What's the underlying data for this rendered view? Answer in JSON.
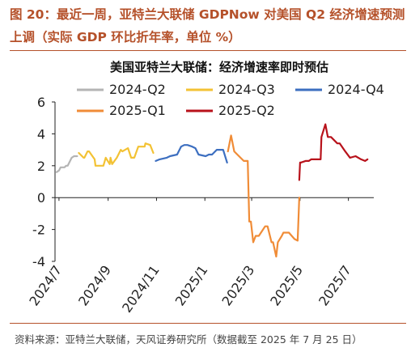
{
  "figure": {
    "title": "图 20：最近一周，亚特兰大联储 GDPNow 对美国 Q2 经济增速预测上调（实际 GDP 环比折年率，单位 %）",
    "source": "资料来源：亚特兰大联储，天风证券研究所（数据截至 2025 年 7 月 25 日）"
  },
  "chart_data": {
    "type": "line",
    "title": "美国亚特兰大联储：经济增速率即时预估",
    "xlabel": "",
    "ylabel": "",
    "ylim": [
      -4,
      6
    ],
    "yticks": [
      "6",
      "4",
      "2",
      "0",
      "-2",
      "-4"
    ],
    "xticks": [
      {
        "label": "2024/7",
        "x": "2024-07-01"
      },
      {
        "label": "2024/9",
        "x": "2024-09-01"
      },
      {
        "label": "2024/11",
        "x": "2024-11-01"
      },
      {
        "label": "2025/1",
        "x": "2025-01-01"
      },
      {
        "label": "2025/3",
        "x": "2025-03-01"
      },
      {
        "label": "2025/5",
        "x": "2025-05-01"
      },
      {
        "label": "2025/7",
        "x": "2025-07-01"
      }
    ],
    "legend_position": "top",
    "grid": false,
    "series": [
      {
        "name": "2024-Q2",
        "color": "#b4b4b4",
        "x": [
          "2024-06-28",
          "2024-07-01",
          "2024-07-03",
          "2024-07-08",
          "2024-07-10",
          "2024-07-12",
          "2024-07-17",
          "2024-07-20",
          "2024-07-24"
        ],
        "y": [
          1.6,
          1.7,
          1.9,
          1.9,
          2.0,
          2.0,
          2.5,
          2.6,
          2.6
        ]
      },
      {
        "name": "2024-Q3",
        "color": "#f3c234",
        "x": [
          "2024-07-26",
          "2024-08-01",
          "2024-08-02",
          "2024-08-06",
          "2024-08-08",
          "2024-08-15",
          "2024-08-16",
          "2024-08-22",
          "2024-08-26",
          "2024-08-29",
          "2024-09-03",
          "2024-09-04",
          "2024-09-06",
          "2024-09-12",
          "2024-09-17",
          "2024-09-19",
          "2024-09-26",
          "2024-09-30",
          "2024-10-01",
          "2024-10-04",
          "2024-10-09",
          "2024-10-17",
          "2024-10-18",
          "2024-10-24",
          "2024-10-28"
        ],
        "y": [
          2.8,
          2.5,
          2.5,
          2.9,
          2.9,
          2.4,
          2.0,
          2.0,
          2.0,
          2.5,
          2.1,
          2.5,
          2.1,
          2.5,
          3.0,
          2.9,
          3.1,
          2.5,
          2.5,
          2.5,
          3.2,
          3.2,
          3.4,
          3.3,
          2.8
        ]
      },
      {
        "name": "2024-Q4",
        "color": "#3d6fc0",
        "x": [
          "2024-10-31",
          "2024-11-05",
          "2024-11-14",
          "2024-11-18",
          "2024-11-27",
          "2024-12-02",
          "2024-12-06",
          "2024-12-10",
          "2024-12-16",
          "2024-12-20",
          "2024-12-24",
          "2025-01-02",
          "2025-01-06",
          "2025-01-10",
          "2025-01-16",
          "2025-01-17",
          "2025-01-24",
          "2025-01-29"
        ],
        "y": [
          2.3,
          2.4,
          2.5,
          2.6,
          2.7,
          3.2,
          3.3,
          3.3,
          3.2,
          3.1,
          2.7,
          2.6,
          2.7,
          2.7,
          3.0,
          3.0,
          3.0,
          2.2
        ]
      },
      {
        "name": "2025-Q1",
        "color": "#f08c37",
        "x": [
          "2025-01-30",
          "2025-02-03",
          "2025-02-07",
          "2025-02-19",
          "2025-02-21",
          "2025-02-24",
          "2025-02-26",
          "2025-02-28",
          "2025-03-03",
          "2025-03-06",
          "2025-03-10",
          "2025-03-14",
          "2025-03-18",
          "2025-03-21",
          "2025-03-26",
          "2025-03-28",
          "2025-04-01",
          "2025-04-03",
          "2025-04-08",
          "2025-04-10",
          "2025-04-14",
          "2025-04-17",
          "2025-04-24",
          "2025-04-28",
          "2025-04-30"
        ],
        "y": [
          2.9,
          3.9,
          2.9,
          2.3,
          2.3,
          2.3,
          -1.5,
          -1.5,
          -2.8,
          -2.4,
          -2.4,
          -2.1,
          -1.8,
          -1.8,
          -2.8,
          -2.8,
          -3.7,
          -2.8,
          -2.4,
          -2.2,
          -2.2,
          -2.2,
          -2.6,
          -2.7,
          0.0
        ]
      },
      {
        "name": "2025-Q2",
        "color": "#b8121b",
        "x": [
          "2025-04-30",
          "2025-05-01",
          "2025-05-02",
          "2025-05-08",
          "2025-05-12",
          "2025-05-15",
          "2025-05-16",
          "2025-05-27",
          "2025-05-28",
          "2025-06-02",
          "2025-06-05",
          "2025-06-09",
          "2025-06-17",
          "2025-06-20",
          "2025-06-27",
          "2025-07-03",
          "2025-07-10",
          "2025-07-17",
          "2025-07-22",
          "2025-07-25"
        ],
        "y": [
          1.1,
          2.2,
          2.2,
          2.3,
          2.3,
          2.4,
          2.4,
          2.4,
          3.8,
          4.6,
          3.8,
          3.8,
          3.4,
          3.4,
          2.9,
          2.5,
          2.6,
          2.4,
          2.3,
          2.4
        ]
      }
    ]
  }
}
